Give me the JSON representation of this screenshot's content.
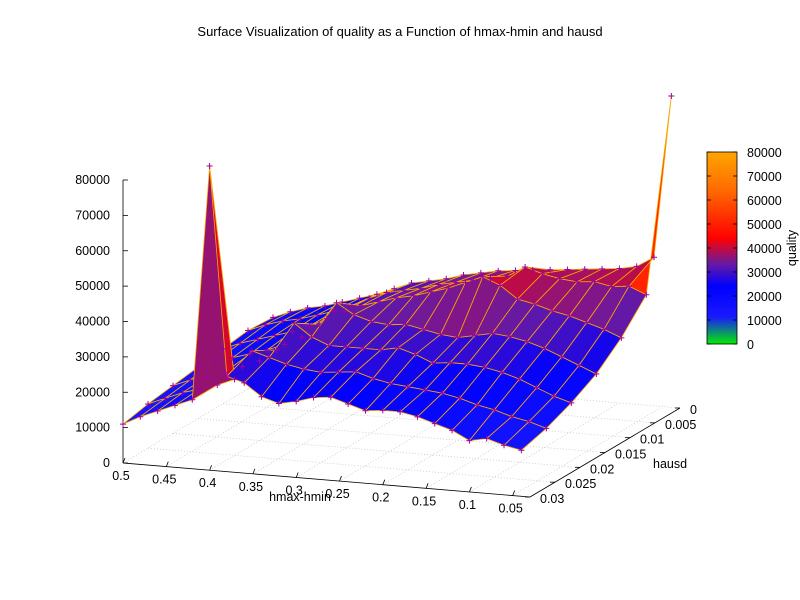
{
  "chart_data": {
    "type": "surface3d",
    "title": "Surface Visualization of quality as a Function of hmax-hmin and hausd",
    "xlabel": "hmax-hmin",
    "ylabel": "hausd",
    "zlabel": "quality",
    "x_ticks": [
      "0.5",
      "0.45",
      "0.4",
      "0.35",
      "0.3",
      "0.25",
      "0.2",
      "0.15",
      "0.1",
      "0.05"
    ],
    "y_ticks": [
      "0",
      "0.005",
      "0.01",
      "0.015",
      "0.02",
      "0.025",
      "0.03"
    ],
    "z_ticks": [
      "0",
      "10000",
      "20000",
      "30000",
      "40000",
      "50000",
      "60000",
      "70000",
      "80000"
    ],
    "colorbar_ticks": [
      "0",
      "10000",
      "20000",
      "30000",
      "40000",
      "50000",
      "60000",
      "70000",
      "80000"
    ],
    "xlim": [
      0.5,
      0.03
    ],
    "ylim": [
      0,
      0.03
    ],
    "zlim": [
      0,
      80000
    ],
    "cblim": [
      0,
      80000
    ],
    "palette": [
      "#00ee00",
      "#2222ff",
      "#0000ff",
      "#7a1a8a",
      "#ff0000",
      "#ff7a00",
      "#ffa500"
    ],
    "grid": true,
    "point_marker": "plus",
    "marker_color": "#a000a0",
    "line_color": "#ffa500",
    "grid_x": [
      0.5,
      0.48,
      0.46,
      0.44,
      0.42,
      0.4,
      0.38,
      0.36,
      0.34,
      0.32,
      0.3,
      0.28,
      0.26,
      0.24,
      0.22,
      0.2,
      0.18,
      0.16,
      0.14,
      0.12,
      0.1,
      0.08,
      0.06,
      0.04
    ],
    "grid_y": [
      0,
      0.005,
      0.01,
      0.015,
      0.02,
      0.025,
      0.03
    ],
    "z": [
      [
        16000,
        18000,
        19500,
        20500,
        22000,
        23500,
        25000,
        27000,
        29000,
        30000,
        31000,
        32500,
        33500,
        34500,
        35000,
        35500,
        36000,
        36500,
        37000,
        37500,
        38000,
        39000,
        42000,
        88000
      ],
      [
        16500,
        18500,
        20000,
        21000,
        22500,
        24000,
        26000,
        28500,
        30500,
        31500,
        32500,
        34000,
        35000,
        36000,
        37000,
        38000,
        41000,
        39500,
        38500,
        38000,
        38500,
        37500,
        38000,
        36000
      ],
      [
        15500,
        17500,
        19000,
        20500,
        22000,
        24000,
        26500,
        29000,
        31000,
        32500,
        34000,
        35000,
        36500,
        38000,
        40000,
        42000,
        40000,
        36500,
        35500,
        34000,
        33000,
        31500,
        30000,
        28000
      ],
      [
        14500,
        16500,
        18000,
        19500,
        21000,
        23000,
        25500,
        29500,
        36000,
        33000,
        31500,
        31000,
        31500,
        30500,
        29500,
        29000,
        30000,
        31000,
        30500,
        29500,
        28000,
        26000,
        24000,
        22000
      ],
      [
        13500,
        15500,
        17000,
        18500,
        20500,
        22500,
        26000,
        34000,
        30500,
        28500,
        28500,
        28500,
        28500,
        29500,
        28000,
        26000,
        26500,
        26500,
        26000,
        25000,
        23500,
        21500,
        19500,
        18000
      ],
      [
        12500,
        14500,
        16500,
        18000,
        19500,
        21500,
        30000,
        28500,
        27000,
        26000,
        25500,
        26000,
        26500,
        25000,
        24000,
        23500,
        23000,
        22500,
        21500,
        20000,
        19000,
        17500,
        16500,
        15000
      ],
      [
        11000,
        13500,
        15500,
        17500,
        19500,
        86000,
        27000,
        25500,
        22000,
        20500,
        21500,
        23000,
        23500,
        22000,
        20500,
        21000,
        21000,
        20000,
        18500,
        17000,
        14500,
        15500,
        14000,
        13000
      ]
    ]
  }
}
